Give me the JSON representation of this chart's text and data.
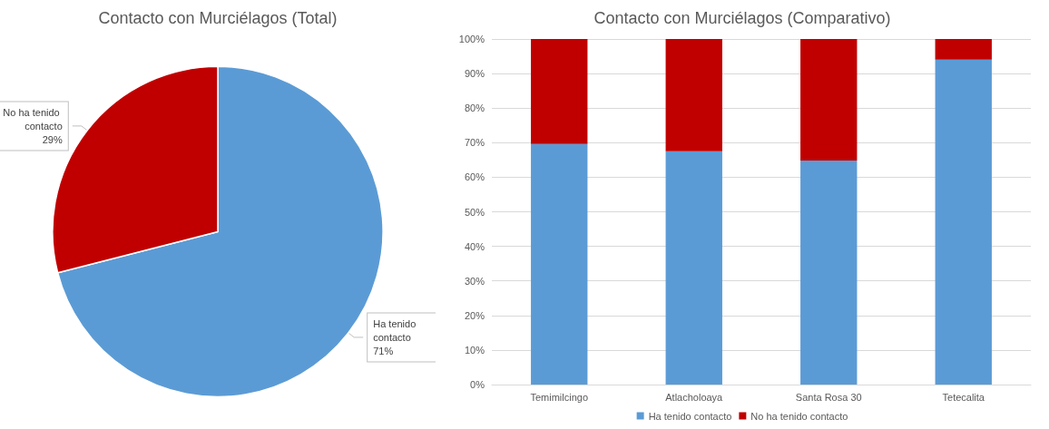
{
  "chart_data": [
    {
      "type": "pie",
      "title": "Contacto con Murciélagos (Total)",
      "categories": [
        "Ha tenido contacto",
        "No ha tenido contacto"
      ],
      "values": [
        71,
        29
      ],
      "value_labels": [
        "71%",
        "29%"
      ],
      "colors": [
        "#5b9bd5",
        "#c00000"
      ],
      "legend": false
    },
    {
      "type": "bar",
      "title": "Contacto con Murciélagos (Comparativo)",
      "categories": [
        "Temimilcingo",
        "Atlacholoaya",
        "Santa Rosa 30",
        "Tetecalita"
      ],
      "stacked": true,
      "legend": "bottom",
      "grid": "y",
      "ylim": [
        0,
        100
      ],
      "yticks": [
        {
          "value": 0,
          "label": "0%"
        },
        {
          "value": 10,
          "label": "10%"
        },
        {
          "value": 20,
          "label": "20%"
        },
        {
          "value": 30,
          "label": "30%"
        },
        {
          "value": 40,
          "label": "40%"
        },
        {
          "value": 50,
          "label": "50%"
        },
        {
          "value": 60,
          "label": "60%"
        },
        {
          "value": 70,
          "label": "70%"
        },
        {
          "value": 80,
          "label": "80%"
        },
        {
          "value": 90,
          "label": "90%"
        },
        {
          "value": 100,
          "label": "100%"
        }
      ],
      "series": [
        {
          "name": "Ha tenido contacto",
          "color": "#5b9bd5",
          "values": [
            69.6,
            67.5,
            64.8,
            94.0
          ]
        },
        {
          "name": "No ha tenido contacto",
          "color": "#c00000",
          "values": [
            30.4,
            32.5,
            35.2,
            6.0
          ]
        }
      ]
    }
  ]
}
